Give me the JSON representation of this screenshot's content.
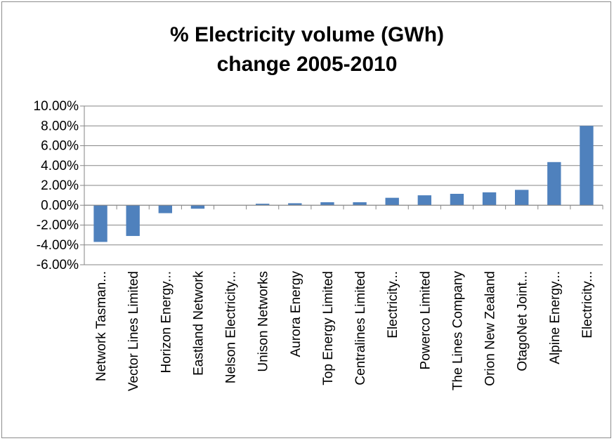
{
  "chart_data": {
    "type": "bar",
    "title_line1": "% Electricity volume (GWh)",
    "title_line2": "change 2005-2010",
    "xlabel": "",
    "ylabel": "",
    "ylim": [
      -6,
      10
    ],
    "yticks": [
      "10.00%",
      "8.00%",
      "6.00%",
      "4.00%",
      "2.00%",
      "0.00%",
      "-2.00%",
      "-4.00%",
      "-6.00%"
    ],
    "ytick_values": [
      10,
      8,
      6,
      4,
      2,
      0,
      -2,
      -4,
      -6
    ],
    "grid": true,
    "bar_color": "#4f81bd",
    "categories": [
      "Network Tasman...",
      "Vector Lines Limited",
      "Horizon Energy...",
      "Eastland Network",
      "Nelson Electricity...",
      "Unison Networks",
      "Aurora Energy",
      "Top Energy Limited",
      "Centralines Limited",
      "Electricity...",
      "Powerco Limited",
      "The Lines Company",
      "Orion New Zealand",
      "OtagoNet Joint...",
      "Alpine Energy...",
      "Electricity..."
    ],
    "values": [
      -3.7,
      -3.1,
      -0.8,
      -0.35,
      0.0,
      0.15,
      0.2,
      0.3,
      0.3,
      0.75,
      1.0,
      1.15,
      1.3,
      1.55,
      4.35,
      8.0
    ]
  }
}
